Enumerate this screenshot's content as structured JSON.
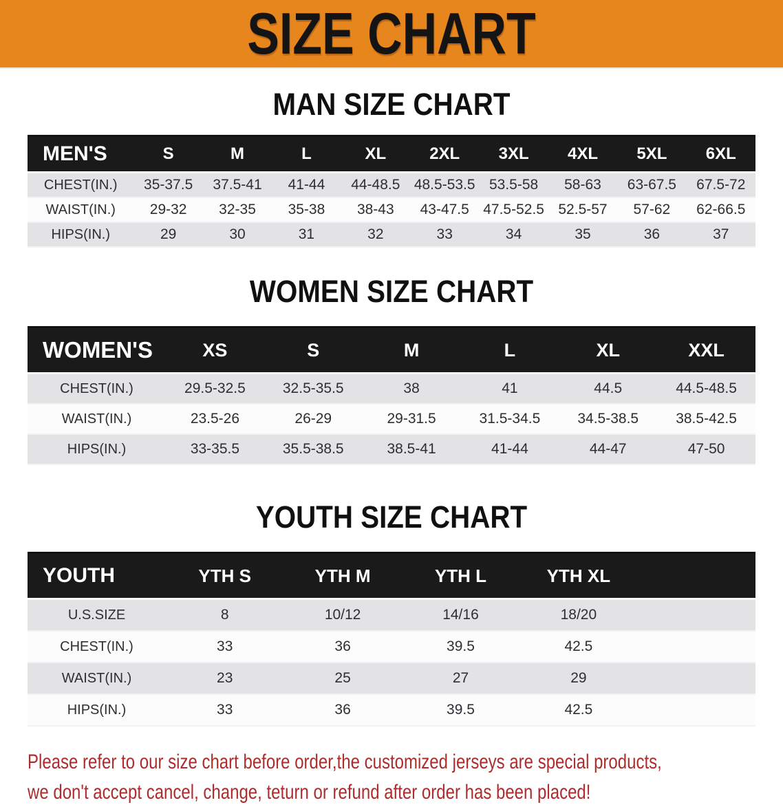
{
  "banner": {
    "title": "SIZE CHART"
  },
  "colors": {
    "banner_bg": "#E8861E",
    "header_bar_bg": "#1a1a1a",
    "row_alt_bg": "#E3E3E5",
    "footer_red": "#AD2C2C"
  },
  "sections": [
    {
      "heading": "MAN SIZE CHART",
      "table": {
        "header": [
          "MEN'S",
          "S",
          "M",
          "L",
          "XL",
          "2XL",
          "3XL",
          "4XL",
          "5XL",
          "6XL"
        ],
        "rows": [
          {
            "label": "CHEST(IN.)",
            "values": [
              "35-37.5",
              "37.5-41",
              "41-44",
              "44-48.5",
              "48.5-53.5",
              "53.5-58",
              "58-63",
              "63-67.5",
              "67.5-72"
            ]
          },
          {
            "label": "WAIST(IN.)",
            "values": [
              "29-32",
              "32-35",
              "35-38",
              "38-43",
              "43-47.5",
              "47.5-52.5",
              "52.5-57",
              "57-62",
              "62-66.5"
            ]
          },
          {
            "label": "HIPS(IN.)",
            "values": [
              "29",
              "30",
              "31",
              "32",
              "33",
              "34",
              "35",
              "36",
              "37"
            ]
          }
        ]
      }
    },
    {
      "heading": "WOMEN SIZE CHART",
      "table": {
        "header": [
          "WOMEN'S",
          "XS",
          "S",
          "M",
          "L",
          "XL",
          "XXL"
        ],
        "rows": [
          {
            "label": "CHEST(IN.)",
            "values": [
              "29.5-32.5",
              "32.5-35.5",
              "38",
              "41",
              "44.5",
              "44.5-48.5"
            ]
          },
          {
            "label": "WAIST(IN.)",
            "values": [
              "23.5-26",
              "26-29",
              "29-31.5",
              "31.5-34.5",
              "34.5-38.5",
              "38.5-42.5"
            ]
          },
          {
            "label": "HIPS(IN.)",
            "values": [
              "33-35.5",
              "35.5-38.5",
              "38.5-41",
              "41-44",
              "44-47",
              "47-50"
            ]
          }
        ]
      }
    },
    {
      "heading": "YOUTH SIZE CHART",
      "table": {
        "header": [
          "YOUTH",
          "YTH S",
          "YTH M",
          "YTH L",
          "YTH XL",
          ""
        ],
        "rows": [
          {
            "label": "U.S.SIZE",
            "values": [
              "8",
              "10/12",
              "14/16",
              "18/20",
              ""
            ]
          },
          {
            "label": "CHEST(IN.)",
            "values": [
              "33",
              "36",
              "39.5",
              "42.5",
              ""
            ]
          },
          {
            "label": "WAIST(IN.)",
            "values": [
              "23",
              "25",
              "27",
              "29",
              ""
            ]
          },
          {
            "label": "HIPS(IN.)",
            "values": [
              "33",
              "36",
              "39.5",
              "42.5",
              ""
            ]
          }
        ]
      }
    }
  ],
  "footer": {
    "line1": "Please refer to our size chart before order,the customized jerseys are special products,",
    "line2": "we don't accept cancel, change, teturn or refund after order has been placed!"
  }
}
